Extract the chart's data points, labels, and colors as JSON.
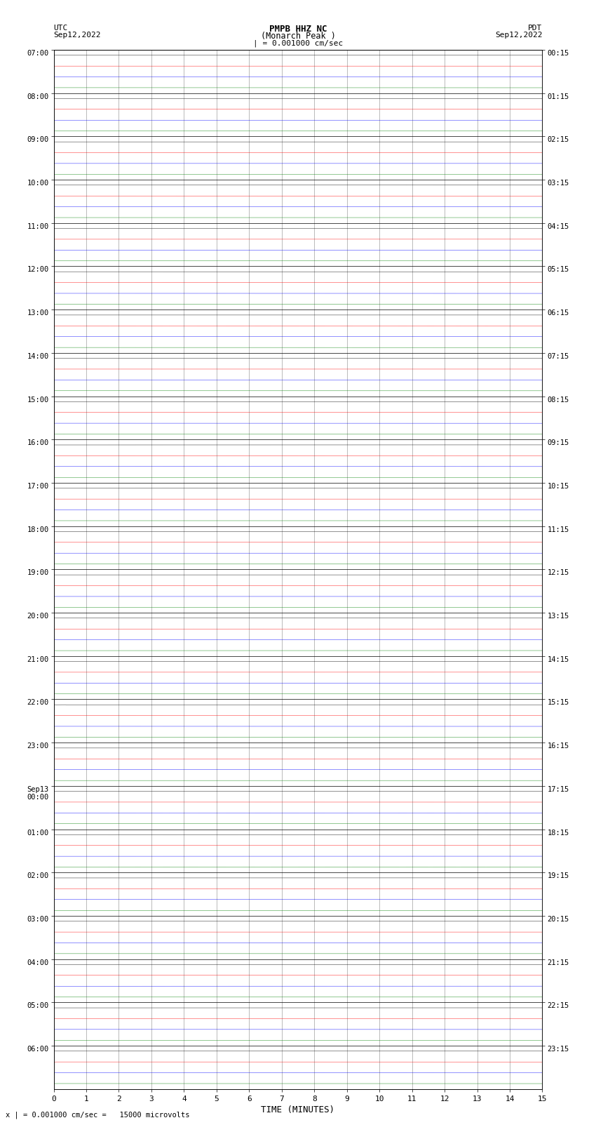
{
  "title_line1": "PMPB HHZ NC",
  "title_line2": "(Monarch Peak )",
  "scale_text": "| = 0.001000 cm/sec",
  "left_label_top": "UTC",
  "left_label_date": "Sep12,2022",
  "right_label_top": "PDT",
  "right_label_date": "Sep12,2022",
  "xlabel": "TIME (MINUTES)",
  "bottom_note": "x | = 0.001000 cm/sec =   15000 microvolts",
  "xmin": 0,
  "xmax": 15,
  "n_rows": 24,
  "traces_per_row": 4,
  "trace_colors": [
    "black",
    "red",
    "blue",
    "green"
  ],
  "bg_color": "white",
  "fig_width": 8.5,
  "fig_height": 16.13,
  "left_times": [
    "07:00",
    "08:00",
    "09:00",
    "10:00",
    "11:00",
    "12:00",
    "13:00",
    "14:00",
    "15:00",
    "16:00",
    "17:00",
    "18:00",
    "19:00",
    "20:00",
    "21:00",
    "22:00",
    "23:00",
    "Sep13\n00:00",
    "01:00",
    "02:00",
    "03:00",
    "04:00",
    "05:00",
    "06:00"
  ],
  "right_times": [
    "00:15",
    "01:15",
    "02:15",
    "03:15",
    "04:15",
    "05:15",
    "06:15",
    "07:15",
    "08:15",
    "09:15",
    "10:15",
    "11:15",
    "12:15",
    "13:15",
    "14:15",
    "15:15",
    "16:15",
    "17:15",
    "18:15",
    "19:15",
    "20:15",
    "21:15",
    "22:15",
    "23:15"
  ],
  "trace_amplitude": 0.03,
  "trace_noise_scale": 0.025,
  "n_points": 9000,
  "linewidth": 0.3
}
